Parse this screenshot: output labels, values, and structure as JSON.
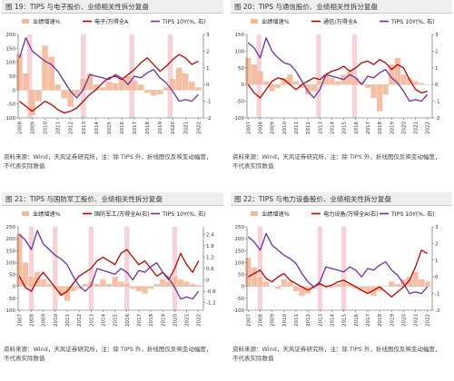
{
  "colors": {
    "bars": "#f4b89a",
    "highlight": "#f6d3d8",
    "red": "#c00000",
    "purple": "#7030a0",
    "axis": "#555555"
  },
  "panels": [
    {
      "title": "图 19：TIPS 与电子股价、业绩相关性拆分复盘",
      "source_line1": "资料来源：Wind，天风证券研究所，注：除 TIPS 外，折线图仅反映变动幅度，",
      "source_line2": "不代表实际数值"
    },
    {
      "title": "图 20：TIPS 与通信股价、业绩相关性拆分复盘",
      "source_line1": "资料来源：Wind，天风证券研究所，注：除 TIPS 外，折线图仅反映变动幅度，",
      "source_line2": "不代表实际数值"
    },
    {
      "title": "图 21：TIPS 与国防军工股价、业绩相关性拆分复盘",
      "source_line1": "资料来源：Wind，天风证券研究所，注：除 TIPS 外，折线图仅反映变动幅度，",
      "source_line2": "不代表实际数值"
    },
    {
      "title": "图 22：TIPS 与电力设备股价、业绩相关性拆分复盘",
      "source_line1": "资料来源：Wind，天风证券研究所，注：除 TIPS 外，折线图仅反映变动幅度，",
      "source_line2": "不代表实际数值"
    }
  ],
  "chart_data": [
    {
      "type": "line",
      "legend": [
        "业绩增速%",
        "电子/万得全A",
        "TIPS 10Y(%, 右)"
      ],
      "legend_placement": "top",
      "x_ticks": [
        "2008",
        "2009",
        "2010",
        "2011",
        "2012",
        "2013",
        "2014",
        "2015",
        "2016",
        "2017",
        "2018",
        "2019",
        "2020",
        "2021",
        "2022"
      ],
      "x_range": [
        2007.9,
        2022.4
      ],
      "ylim_left": [
        -100,
        200
      ],
      "yticks_left": [
        -100,
        -50,
        0,
        50,
        100,
        150,
        200
      ],
      "ylim_right": [
        -2,
        3
      ],
      "yticks_right": [
        -2,
        -1,
        0,
        1,
        2,
        3
      ],
      "highlights": [
        [
          2008.6,
          2009.0
        ],
        [
          2012.8,
          2013.2
        ],
        [
          2016.6,
          2017.0
        ],
        [
          2019.6,
          2020.0
        ]
      ],
      "bars": {
        "name": "业绩增速%",
        "x": [
          2008.0,
          2008.5,
          2009.0,
          2009.5,
          2010.0,
          2010.5,
          2011.0,
          2011.5,
          2012.0,
          2012.5,
          2013.0,
          2013.5,
          2014.0,
          2014.5,
          2015.0,
          2015.5,
          2016.0,
          2016.5,
          2017.0,
          2017.5,
          2018.0,
          2018.5,
          2019.0,
          2019.5,
          2020.0,
          2020.5,
          2021.0,
          2021.5,
          2022.0
        ],
        "values": [
          130,
          60,
          -90,
          -40,
          160,
          120,
          20,
          -30,
          -60,
          -20,
          40,
          60,
          20,
          10,
          30,
          25,
          40,
          50,
          35,
          20,
          -10,
          -20,
          -15,
          10,
          40,
          80,
          60,
          30,
          10
        ]
      },
      "series": [
        {
          "name": "电子/万得全A",
          "axis": "right",
          "x": [
            2008.0,
            2008.5,
            2009.0,
            2009.5,
            2010.0,
            2010.5,
            2011.0,
            2011.5,
            2012.0,
            2012.5,
            2013.0,
            2013.5,
            2014.0,
            2014.5,
            2015.0,
            2015.5,
            2016.0,
            2016.5,
            2017.0,
            2017.5,
            2018.0,
            2018.5,
            2019.0,
            2019.5,
            2020.0,
            2020.5,
            2021.0,
            2021.5,
            2022.0
          ],
          "values": [
            -1.0,
            -1.3,
            -1.6,
            -1.3,
            -1.0,
            -1.2,
            -1.5,
            -1.7,
            -1.6,
            -1.4,
            -1.0,
            -0.6,
            -0.3,
            0.1,
            0.4,
            0.5,
            0.3,
            0.6,
            0.9,
            1.3,
            1.6,
            1.2,
            0.8,
            1.1,
            1.5,
            1.8,
            1.6,
            1.2,
            1.4
          ]
        },
        {
          "name": "TIPS 10Y(%, 右)",
          "axis": "right",
          "x": [
            2008.0,
            2008.5,
            2009.0,
            2009.5,
            2010.0,
            2010.5,
            2011.0,
            2011.5,
            2012.0,
            2012.5,
            2013.0,
            2013.5,
            2014.0,
            2014.5,
            2015.0,
            2015.5,
            2016.0,
            2016.5,
            2017.0,
            2017.5,
            2018.0,
            2018.5,
            2019.0,
            2019.5,
            2020.0,
            2020.5,
            2021.0,
            2021.5,
            2022.0
          ],
          "values": [
            1.6,
            2.8,
            2.0,
            1.7,
            1.4,
            1.2,
            0.8,
            0.2,
            -0.4,
            -0.8,
            -0.3,
            0.6,
            0.5,
            0.4,
            0.3,
            0.6,
            0.4,
            0.0,
            0.5,
            0.4,
            0.7,
            0.9,
            0.4,
            0.1,
            -0.4,
            -1.0,
            -0.9,
            -1.0,
            -0.6
          ]
        }
      ]
    },
    {
      "type": "line",
      "legend": [
        "业绩增速%",
        "通信/万得全A",
        "TIPS 10Y(%, 右)"
      ],
      "legend_placement": "top",
      "x_ticks": [
        "2007",
        "2008",
        "2009",
        "2010",
        "2011",
        "2012",
        "2013",
        "2014",
        "2015",
        "2016",
        "2017",
        "2018",
        "2019",
        "2020",
        "2021",
        "2022"
      ],
      "x_range": [
        2006.9,
        2022.4
      ],
      "ylim_left": [
        -100,
        150
      ],
      "yticks_left": [
        -100,
        -50,
        0,
        50,
        100,
        150
      ],
      "ylim_right": [
        -2,
        3
      ],
      "yticks_right": [
        -2,
        -1,
        0,
        1,
        2,
        3
      ],
      "highlights": [
        [
          2007.7,
          2008.1
        ],
        [
          2012.7,
          2013.1
        ],
        [
          2015.7,
          2016.1
        ]
      ],
      "bars": {
        "name": "业绩增速%",
        "x": [
          2007.0,
          2007.5,
          2008.0,
          2008.5,
          2009.0,
          2009.5,
          2010.0,
          2010.5,
          2011.0,
          2011.5,
          2012.0,
          2012.5,
          2013.0,
          2013.5,
          2014.0,
          2014.5,
          2015.0,
          2015.5,
          2016.0,
          2016.5,
          2017.0,
          2017.5,
          2018.0,
          2018.5,
          2019.0,
          2019.5,
          2020.0,
          2020.5,
          2021.0,
          2021.5,
          2022.0
        ],
        "values": [
          80,
          60,
          40,
          10,
          -20,
          -10,
          20,
          30,
          10,
          -10,
          -30,
          -20,
          10,
          30,
          20,
          10,
          30,
          40,
          20,
          10,
          -10,
          -40,
          -80,
          -30,
          60,
          80,
          30,
          20,
          10,
          5,
          0
        ]
      },
      "series": [
        {
          "name": "通信/万得全A",
          "axis": "right",
          "x": [
            2007.0,
            2007.5,
            2008.0,
            2008.5,
            2009.0,
            2009.5,
            2010.0,
            2010.5,
            2011.0,
            2011.5,
            2012.0,
            2012.5,
            2013.0,
            2013.5,
            2014.0,
            2014.5,
            2015.0,
            2015.5,
            2016.0,
            2016.5,
            2017.0,
            2017.5,
            2018.0,
            2018.5,
            2019.0,
            2019.5,
            2020.0,
            2020.5,
            2021.0,
            2021.5,
            2022.0
          ],
          "values": [
            0.0,
            -0.5,
            -0.8,
            -0.3,
            0.2,
            0.4,
            0.3,
            0.0,
            -0.3,
            0.0,
            0.2,
            0.4,
            0.3,
            0.6,
            0.8,
            0.9,
            1.1,
            0.8,
            1.0,
            1.3,
            1.4,
            1.2,
            1.5,
            1.3,
            0.9,
            1.2,
            1.0,
            0.3,
            -0.3,
            -0.5,
            -0.4
          ]
        },
        {
          "name": "TIPS 10Y(%, 右)",
          "axis": "right",
          "x": [
            2007.0,
            2007.5,
            2008.0,
            2008.5,
            2009.0,
            2009.5,
            2010.0,
            2010.5,
            2011.0,
            2011.5,
            2012.0,
            2012.5,
            2013.0,
            2013.5,
            2014.0,
            2014.5,
            2015.0,
            2015.5,
            2016.0,
            2016.5,
            2017.0,
            2017.5,
            2018.0,
            2018.5,
            2019.0,
            2019.5,
            2020.0,
            2020.5,
            2021.0,
            2021.5,
            2022.0
          ],
          "values": [
            2.5,
            2.2,
            1.6,
            2.8,
            2.0,
            1.6,
            1.3,
            1.2,
            0.8,
            0.2,
            -0.4,
            -0.8,
            -0.3,
            0.6,
            0.5,
            0.4,
            0.3,
            0.6,
            0.4,
            0.0,
            0.5,
            0.4,
            0.7,
            0.9,
            0.4,
            0.1,
            -0.4,
            -1.0,
            -0.9,
            -1.0,
            -0.6
          ]
        }
      ]
    },
    {
      "type": "line",
      "legend": [
        "业绩增速%",
        "国防军工/万得全A(右)",
        "TIPS 10Y(%, 右)"
      ],
      "legend_placement": "top",
      "x_ticks": [
        "2007",
        "2008",
        "2009",
        "2010",
        "2011",
        "2012",
        "2013",
        "2014",
        "2015",
        "2016",
        "2017",
        "2018",
        "2019",
        "2020",
        "2021",
        "2022"
      ],
      "x_range": [
        2006.9,
        2022.4
      ],
      "ylim_left": [
        -100,
        250
      ],
      "yticks_left": [
        -100,
        -50,
        0,
        50,
        100,
        150,
        200,
        250
      ],
      "ylim_right": [
        -1.6,
        2.8
      ],
      "yticks_right": [
        -1.2,
        -0.6,
        0,
        0.6,
        1.2,
        1.8,
        2.4
      ],
      "highlights": [
        [
          2007.8,
          2008.2
        ],
        [
          2009.8,
          2010.2
        ],
        [
          2012.8,
          2013.2
        ],
        [
          2015.8,
          2016.2
        ],
        [
          2019.8,
          2020.2
        ]
      ],
      "bars": {
        "name": "业绩增速%",
        "x": [
          2007.0,
          2007.5,
          2008.0,
          2008.5,
          2009.0,
          2009.5,
          2010.0,
          2010.5,
          2011.0,
          2011.5,
          2012.0,
          2012.5,
          2013.0,
          2013.5,
          2014.0,
          2014.5,
          2015.0,
          2015.5,
          2016.0,
          2016.5,
          2017.0,
          2017.5,
          2018.0,
          2018.5,
          2019.0,
          2019.5,
          2020.0,
          2020.5,
          2021.0,
          2021.5,
          2022.0
        ],
        "values": [
          220,
          100,
          40,
          60,
          30,
          10,
          -10,
          -40,
          -60,
          -20,
          -10,
          10,
          20,
          10,
          30,
          10,
          40,
          20,
          10,
          -10,
          -20,
          -30,
          -10,
          10,
          30,
          20,
          40,
          30,
          20,
          10,
          5
        ]
      },
      "series": [
        {
          "name": "国防军工/万得全A(右)",
          "axis": "right",
          "x": [
            2007.0,
            2007.5,
            2008.0,
            2008.5,
            2009.0,
            2009.5,
            2010.0,
            2010.5,
            2011.0,
            2011.5,
            2012.0,
            2012.5,
            2013.0,
            2013.5,
            2014.0,
            2014.5,
            2015.0,
            2015.5,
            2016.0,
            2016.5,
            2017.0,
            2017.5,
            2018.0,
            2018.5,
            2019.0,
            2019.5,
            2020.0,
            2020.5,
            2021.0,
            2021.5,
            2022.0
          ],
          "values": [
            0.2,
            -0.4,
            -0.6,
            0.0,
            0.4,
            0.0,
            -0.4,
            -0.8,
            -0.6,
            -0.2,
            0.2,
            0.4,
            0.6,
            1.0,
            1.2,
            1.0,
            0.8,
            1.4,
            1.6,
            1.2,
            0.8,
            1.0,
            0.6,
            0.2,
            0.4,
            0.0,
            0.6,
            1.4,
            0.8,
            0.4,
            1.0
          ]
        },
        {
          "name": "TIPS 10Y(%, 右)",
          "axis": "right",
          "x": [
            2007.0,
            2007.5,
            2008.0,
            2008.5,
            2009.0,
            2009.5,
            2010.0,
            2010.5,
            2011.0,
            2011.5,
            2012.0,
            2012.5,
            2013.0,
            2013.5,
            2014.0,
            2014.5,
            2015.0,
            2015.5,
            2016.0,
            2016.5,
            2017.0,
            2017.5,
            2018.0,
            2018.5,
            2019.0,
            2019.5,
            2020.0,
            2020.5,
            2021.0,
            2021.5,
            2022.0
          ],
          "values": [
            2.4,
            2.1,
            1.6,
            2.6,
            1.9,
            1.6,
            1.3,
            1.1,
            0.8,
            0.2,
            -0.3,
            -0.6,
            -0.3,
            0.6,
            0.5,
            0.4,
            0.3,
            0.6,
            0.4,
            0.0,
            0.5,
            0.4,
            0.7,
            0.9,
            0.4,
            0.1,
            -0.4,
            -1.0,
            -0.9,
            -1.0,
            -0.6
          ]
        }
      ]
    },
    {
      "type": "line",
      "legend": [
        "业绩增速%",
        "电力设备/万得全A(右)",
        "TIPS 10Y(%, 右)"
      ],
      "legend_placement": "top",
      "x_ticks": [
        "2007",
        "2008",
        "2009",
        "2010",
        "2011",
        "2012",
        "2013",
        "2014",
        "2015",
        "2016",
        "2017",
        "2018",
        "2019",
        "2020",
        "2021",
        "2022"
      ],
      "x_range": [
        2006.9,
        2022.4
      ],
      "ylim_left": [
        -100,
        250
      ],
      "yticks_left": [
        -100,
        -50,
        0,
        50,
        100,
        150,
        200,
        250
      ],
      "ylim_right": [
        -2,
        3
      ],
      "yticks_right": [
        -2,
        -1,
        0,
        1,
        2,
        3
      ],
      "highlights": [
        [
          2007.8,
          2008.2
        ],
        [
          2012.8,
          2013.2
        ],
        [
          2014.8,
          2015.2
        ]
      ],
      "bars": {
        "name": "业绩增速%",
        "x": [
          2007.0,
          2007.5,
          2008.0,
          2008.5,
          2009.0,
          2009.5,
          2010.0,
          2010.5,
          2011.0,
          2011.5,
          2012.0,
          2012.5,
          2013.0,
          2013.5,
          2014.0,
          2014.5,
          2015.0,
          2015.5,
          2016.0,
          2016.5,
          2017.0,
          2017.5,
          2018.0,
          2018.5,
          2019.0,
          2019.5,
          2020.0,
          2020.5,
          2021.0,
          2021.5,
          2022.0
        ],
        "values": [
          120,
          80,
          40,
          20,
          0,
          -10,
          30,
          20,
          -20,
          -40,
          -30,
          -10,
          10,
          5,
          -5,
          10,
          20,
          10,
          -10,
          -20,
          -30,
          -40,
          -20,
          0,
          20,
          10,
          30,
          40,
          60,
          30,
          20
        ]
      },
      "series": [
        {
          "name": "电力设备/万得全A(右)",
          "axis": "right",
          "x": [
            2007.0,
            2007.5,
            2008.0,
            2008.5,
            2009.0,
            2009.5,
            2010.0,
            2010.5,
            2011.0,
            2011.5,
            2012.0,
            2012.5,
            2013.0,
            2013.5,
            2014.0,
            2014.5,
            2015.0,
            2015.5,
            2016.0,
            2016.5,
            2017.0,
            2017.5,
            2018.0,
            2018.5,
            2019.0,
            2019.5,
            2020.0,
            2020.5,
            2021.0,
            2021.5,
            2022.0
          ],
          "values": [
            0.0,
            0.2,
            0.4,
            -0.1,
            -0.3,
            0.0,
            0.2,
            -0.2,
            -0.4,
            -0.6,
            -0.8,
            -0.6,
            -0.4,
            -0.6,
            -0.5,
            -0.3,
            -0.2,
            -0.4,
            -0.6,
            -0.8,
            -1.0,
            -0.8,
            -0.6,
            -0.9,
            -1.2,
            -0.9,
            -0.6,
            -0.2,
            0.6,
            1.6,
            1.4
          ]
        },
        {
          "name": "TIPS 10Y(%, 右)",
          "axis": "right",
          "x": [
            2007.0,
            2007.5,
            2008.0,
            2008.5,
            2009.0,
            2009.5,
            2010.0,
            2010.5,
            2011.0,
            2011.5,
            2012.0,
            2012.5,
            2013.0,
            2013.5,
            2014.0,
            2014.5,
            2015.0,
            2015.5,
            2016.0,
            2016.5,
            2017.0,
            2017.5,
            2018.0,
            2018.5,
            2019.0,
            2019.5,
            2020.0,
            2020.5,
            2021.0,
            2021.5,
            2022.0
          ],
          "values": [
            2.4,
            2.1,
            1.6,
            2.6,
            1.9,
            1.6,
            1.3,
            1.1,
            0.8,
            0.2,
            -0.3,
            -0.6,
            -0.3,
            0.6,
            0.5,
            0.4,
            0.3,
            0.6,
            0.4,
            0.0,
            0.5,
            0.4,
            0.7,
            0.9,
            0.4,
            0.1,
            -0.4,
            -1.0,
            -0.9,
            -1.0,
            -0.6
          ]
        }
      ]
    }
  ]
}
